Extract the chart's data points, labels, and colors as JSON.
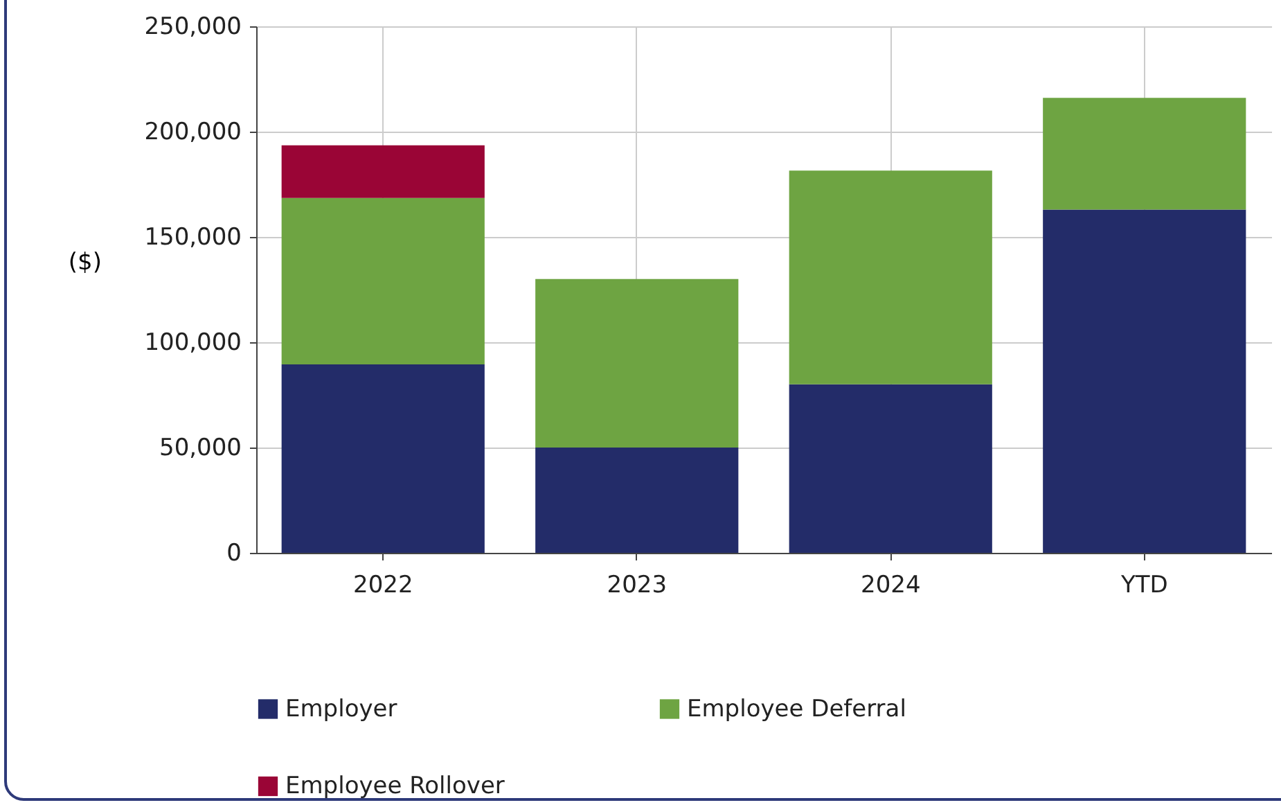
{
  "chart_data": {
    "type": "bar",
    "stacked": true,
    "ylabel": "($)",
    "categories": [
      "2022",
      "2023",
      "2024",
      "YTD"
    ],
    "series": [
      {
        "name": "Employer",
        "color": "#232c69",
        "values": [
          89500,
          50000,
          80000,
          163000
        ]
      },
      {
        "name": "Employee Deferral",
        "color": "#6ea442",
        "values": [
          79000,
          80000,
          101500,
          53000
        ]
      },
      {
        "name": "Employee Rollover",
        "color": "#9a0536",
        "values": [
          25000,
          null,
          null,
          null
        ]
      }
    ],
    "ylim": [
      0,
      250000
    ],
    "yticks": [
      0,
      {
        "value": 50000,
        "label": "50,000"
      },
      {
        "value": 100000,
        "label": "100,000"
      },
      {
        "value": 150000,
        "label": "150,000"
      },
      {
        "value": 200000,
        "label": "200,000"
      },
      {
        "value": 250000,
        "label": "250,000"
      }
    ],
    "grid": true,
    "legend": "bottom"
  }
}
